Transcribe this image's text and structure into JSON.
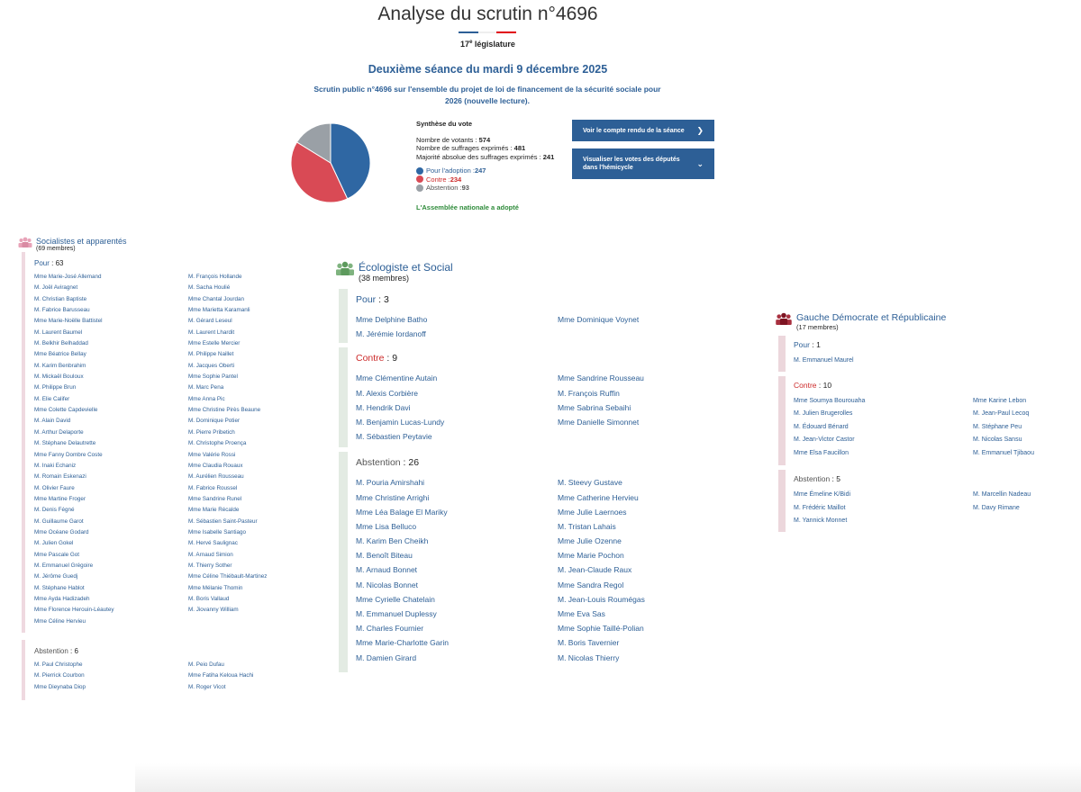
{
  "header": {
    "title": "Analyse du scrutin n°4696",
    "legislature_num": "17",
    "legislature_sup": "e",
    "legislature_text": " législature",
    "seance": "Deuxième séance du mardi 9 décembre 2025",
    "description": "Scrutin public n°4696 sur l'ensemble du projet de loi de financement de la sécurité sociale pour 2026 (nouvelle lecture).",
    "flag_colors": [
      "#2d5f96",
      "#ffffff",
      "#e1000f"
    ]
  },
  "synthese": {
    "heading": "Synthèse du vote",
    "votants_label": "Nombre de votants : ",
    "votants": "574",
    "exprimes_label": "Nombre de suffrages exprimés : ",
    "exprimes": "481",
    "majorite_label": "Majorité absolue des suffrages exprimés : ",
    "majorite": "241",
    "pour_label": "Pour l'adoption : ",
    "pour": "247",
    "contre_label": "Contre : ",
    "contre": "234",
    "abstention_label": "Abstention : ",
    "abstention": "93",
    "result": "L'Assemblée nationale a adopté",
    "colors": {
      "pour": "#2f67a3",
      "contre": "#d94a55",
      "abstention": "#9aa0a6"
    }
  },
  "buttons": {
    "compte_rendu": "Voir le compte rendu de la séance",
    "hemicycle": "Visualiser les votes des députés dans l'hémicycle"
  },
  "groups": {
    "socialistes": {
      "name": "Socialistes et apparentés",
      "members": "(69 membres)",
      "pour_label": "Pour",
      "pour_count": "63",
      "pour": [
        "Mme Marie-José Allemand",
        "M. Joël Aviragnet",
        "M. Christian Baptiste",
        "M. Fabrice Barusseau",
        "Mme Marie-Noëlle Battistel",
        "M. Laurent Baumel",
        "M. Belkhir Belhaddad",
        "Mme Béatrice Bellay",
        "M. Karim Benbrahim",
        "M. Mickaël Bouloux",
        "M. Philippe Brun",
        "M. Elie Califer",
        "Mme Colette Capdevielle",
        "M. Alain David",
        "M. Arthur Delaporte",
        "M. Stéphane Delautrette",
        "Mme Fanny Dombre Coste",
        "M. Inaki Echaniz",
        "M. Romain Eskenazi",
        "M. Olivier Faure",
        "Mme Martine Froger",
        "M. Denis Fégné",
        "M. Guillaume Garot",
        "Mme Océane Godard",
        "M. Julien Gokel",
        "Mme Pascale Got",
        "M. Emmanuel Grégoire",
        "M. Jérôme Guedj",
        "M. Stéphane Hablot",
        "Mme Ayda Hadizadeh",
        "Mme Florence Herouin-Léautey",
        "Mme Céline Hervieu",
        "M. François Hollande",
        "M. Sacha Houlié",
        "Mme Chantal Jourdan",
        "Mme Marietta Karamanli",
        "M. Gérard Leseul",
        "M. Laurent Lhardit",
        "Mme Estelle Mercier",
        "M. Philippe Naillet",
        "M. Jacques Oberti",
        "Mme Sophie Pantel",
        "M. Marc Pena",
        "Mme Anna Pic",
        "Mme Christine Pirès Beaune",
        "M. Dominique Potier",
        "M. Pierre Pribetich",
        "M. Christophe Proença",
        "Mme Valérie Rossi",
        "Mme Claudia Rouaux",
        "M. Aurélien Rousseau",
        "M. Fabrice Roussel",
        "Mme Sandrine Runel",
        "Mme Marie Récalde",
        "M. Sébastien Saint-Pasteur",
        "Mme Isabelle Santiago",
        "M. Hervé Saulignac",
        "M. Arnaud Simion",
        "M. Thierry Sother",
        "Mme Céline Thiébault-Martinez",
        "Mme Mélanie Thomin",
        "M. Boris Vallaud",
        "M. Jiovanny William"
      ],
      "abstention_label": "Abstention",
      "abstention_count": "6",
      "abstention": [
        "M. Paul Christophe",
        "M. Pierrick Courbon",
        "Mme Dieynaba Diop",
        "M. Peio Dufau",
        "Mme Fatiha Keloua Hachi",
        "M. Roger Vicot"
      ],
      "color": "#e8a3b8"
    },
    "ecologiste": {
      "name": "Écologiste et Social",
      "members": "(38 membres)",
      "pour_label": "Pour",
      "pour_count": "3",
      "pour": [
        "Mme Delphine Batho",
        "M. Jérémie Iordanoff",
        "Mme Dominique Voynet"
      ],
      "contre_label": "Contre",
      "contre_count": "9",
      "contre": [
        "Mme Clémentine Autain",
        "M. Alexis Corbière",
        "M. Hendrik Davi",
        "M. Benjamin Lucas-Lundy",
        "M. Sébastien Peytavie",
        "Mme Sandrine Rousseau",
        "M. François Ruffin",
        "Mme Sabrina Sebaihi",
        "Mme Danielle Simonnet"
      ],
      "abstention_label": "Abstention",
      "abstention_count": "26",
      "abstention": [
        "M. Pouria Amirshahi",
        "Mme Christine Arrighi",
        "Mme Léa Balage El Mariky",
        "Mme Lisa Belluco",
        "M. Karim Ben Cheikh",
        "M. Benoît Biteau",
        "M. Arnaud Bonnet",
        "M. Nicolas Bonnet",
        "Mme Cyrielle Chatelain",
        "M. Emmanuel Duplessy",
        "M. Charles Fournier",
        "Mme Marie-Charlotte Garin",
        "M. Damien Girard",
        "M. Steevy Gustave",
        "Mme Catherine Hervieu",
        "Mme Julie Laernoes",
        "M. Tristan Lahais",
        "Mme Julie Ozenne",
        "Mme Marie Pochon",
        "M. Jean-Claude Raux",
        "Mme Sandra Regol",
        "M. Jean-Louis Roumégas",
        "Mme Eva Sas",
        "Mme Sophie Taillé-Polian",
        "M. Boris Tavernier",
        "M. Nicolas Thierry"
      ],
      "color": "#6aa56a"
    },
    "gdr": {
      "name": "Gauche Démocrate et Républicaine",
      "members": "(17 membres)",
      "pour_label": "Pour",
      "pour_count": "1",
      "pour": [
        "M. Emmanuel Maurel"
      ],
      "contre_label": "Contre",
      "contre_count": "10",
      "contre": [
        "Mme Soumya Bourouaha",
        "M. Julien Brugerolles",
        "M. Édouard Bénard",
        "M. Jean-Victor Castor",
        "Mme Elsa Faucillon",
        "Mme Karine Lebon",
        "M. Jean-Paul Lecoq",
        "M. Stéphane Peu",
        "M. Nicolas Sansu",
        "M. Emmanuel Tjibaou"
      ],
      "abstention_label": "Abstention",
      "abstention_count": "5",
      "abstention": [
        "Mme Émeline K/Bidi",
        "M. Frédéric Maillot",
        "M. Yannick Monnet",
        "M. Marcellin Nadeau",
        "M. Davy Rimane"
      ],
      "color": "#8b1a2a"
    }
  }
}
